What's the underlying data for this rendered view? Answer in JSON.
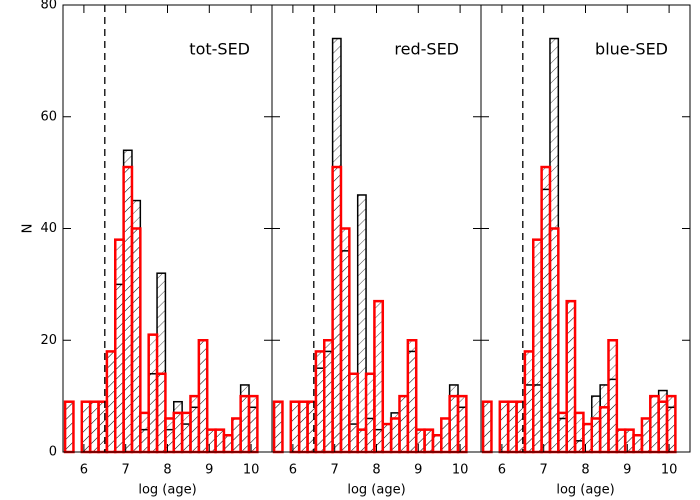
{
  "chart_data": [
    {
      "type": "histogram",
      "annotation": "tot-SED",
      "xlabel": "log (age)",
      "ylabel": "N",
      "xlim": [
        5.5,
        10.5
      ],
      "ylim": [
        0,
        80
      ],
      "xticks": [
        6,
        7,
        8,
        9,
        10
      ],
      "yticks": [
        0,
        20,
        40,
        60,
        80
      ],
      "vline": 6.5,
      "bins": [
        5.55,
        5.75,
        5.95,
        6.15,
        6.35,
        6.55,
        6.75,
        6.95,
        7.15,
        7.35,
        7.55,
        7.75,
        7.95,
        8.15,
        8.35,
        8.55,
        8.75,
        8.95,
        9.15,
        9.35,
        9.55,
        9.75,
        9.95,
        10.15,
        10.35
      ],
      "series": [
        {
          "color": "#000000",
          "values": [
            9,
            0,
            9,
            9,
            9,
            18,
            30,
            54,
            45,
            4,
            14,
            32,
            4,
            9,
            5,
            8,
            20,
            4,
            4,
            3,
            6,
            12,
            8,
            0
          ]
        },
        {
          "color": "#ff0000",
          "values": [
            9,
            0,
            9,
            9,
            9,
            18,
            38,
            51,
            40,
            7,
            21,
            14,
            6,
            7,
            7,
            10,
            20,
            4,
            4,
            3,
            6,
            10,
            10,
            0
          ]
        }
      ]
    },
    {
      "type": "histogram",
      "annotation": "red-SED",
      "xlabel": "log (age)",
      "xlim": [
        5.5,
        10.5
      ],
      "ylim": [
        0,
        80
      ],
      "xticks": [
        6,
        7,
        8,
        9,
        10
      ],
      "vline": 6.5,
      "bins": [
        5.55,
        5.75,
        5.95,
        6.15,
        6.35,
        6.55,
        6.75,
        6.95,
        7.15,
        7.35,
        7.55,
        7.75,
        7.95,
        8.15,
        8.35,
        8.55,
        8.75,
        8.95,
        9.15,
        9.35,
        9.55,
        9.75,
        9.95,
        10.15,
        10.35
      ],
      "series": [
        {
          "color": "#000000",
          "values": [
            9,
            0,
            9,
            9,
            9,
            15,
            18,
            74,
            36,
            5,
            46,
            6,
            4,
            5,
            7,
            10,
            18,
            4,
            4,
            3,
            6,
            12,
            8,
            0
          ]
        },
        {
          "color": "#ff0000",
          "values": [
            9,
            0,
            9,
            9,
            9,
            18,
            20,
            51,
            40,
            14,
            4,
            14,
            27,
            5,
            6,
            10,
            20,
            4,
            4,
            3,
            6,
            10,
            10,
            0
          ]
        }
      ]
    },
    {
      "type": "histogram",
      "annotation": "blue-SED",
      "xlabel": "log (age)",
      "xlim": [
        5.5,
        10.5
      ],
      "ylim": [
        0,
        80
      ],
      "xticks": [
        6,
        7,
        8,
        9,
        10
      ],
      "vline": 6.5,
      "bins": [
        5.55,
        5.75,
        5.95,
        6.15,
        6.35,
        6.55,
        6.75,
        6.95,
        7.15,
        7.35,
        7.55,
        7.75,
        7.95,
        8.15,
        8.35,
        8.55,
        8.75,
        8.95,
        9.15,
        9.35,
        9.55,
        9.75,
        9.95,
        10.15,
        10.35
      ],
      "series": [
        {
          "color": "#000000",
          "values": [
            9,
            0,
            9,
            9,
            9,
            12,
            12,
            47,
            74,
            6,
            27,
            2,
            5,
            10,
            12,
            13,
            4,
            4,
            3,
            6,
            10,
            11,
            8,
            0
          ]
        },
        {
          "color": "#ff0000",
          "values": [
            9,
            0,
            9,
            9,
            9,
            18,
            38,
            51,
            40,
            7,
            27,
            7,
            5,
            6,
            8,
            20,
            4,
            4,
            3,
            6,
            10,
            9,
            10,
            0
          ]
        }
      ]
    }
  ]
}
